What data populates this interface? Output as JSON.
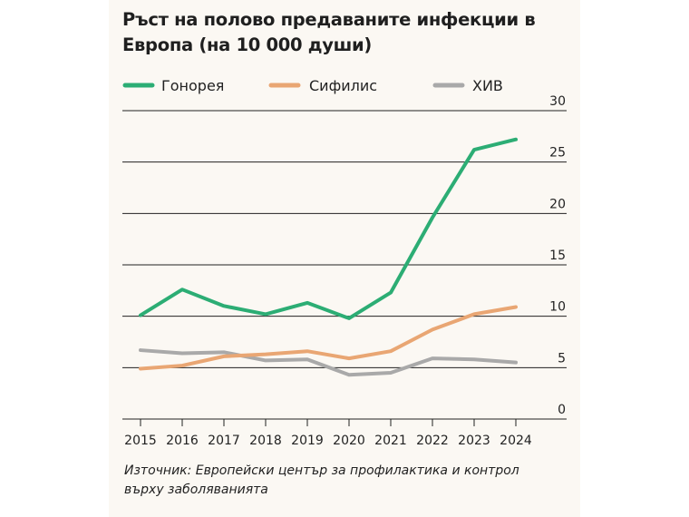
{
  "colors": {
    "gonorrhea": "#2cad74",
    "syphilis": "#e9a673",
    "hiv": "#a9a9a9"
  },
  "chart_data": {
    "type": "line",
    "title": "Ръст на полово предаваните инфекции в Европа (на 10 000 души)",
    "source": "Източник: Европейски център за профилактика и контрол върху заболяванията",
    "x": [
      "2015",
      "2016",
      "2017",
      "2018",
      "2019",
      "2020",
      "2021",
      "2022",
      "2023",
      "2024"
    ],
    "y_ticks": [
      "0",
      "5",
      "10",
      "15",
      "20",
      "25",
      "30"
    ],
    "ylim": [
      0,
      30
    ],
    "grid": true,
    "legend_position": "top",
    "series": [
      {
        "name": "Гонорея",
        "key": "gonorrhea",
        "values": [
          10.1,
          12.6,
          11.0,
          10.2,
          11.3,
          9.8,
          12.3,
          19.6,
          26.2,
          27.2
        ]
      },
      {
        "name": "Сифилис",
        "key": "syphilis",
        "values": [
          4.9,
          5.2,
          6.1,
          6.3,
          6.6,
          5.9,
          6.6,
          8.7,
          10.2,
          10.9
        ]
      },
      {
        "name": "ХИВ",
        "key": "hiv",
        "values": [
          6.7,
          6.4,
          6.5,
          5.7,
          5.8,
          4.3,
          4.5,
          5.9,
          5.8,
          5.5
        ]
      }
    ]
  }
}
